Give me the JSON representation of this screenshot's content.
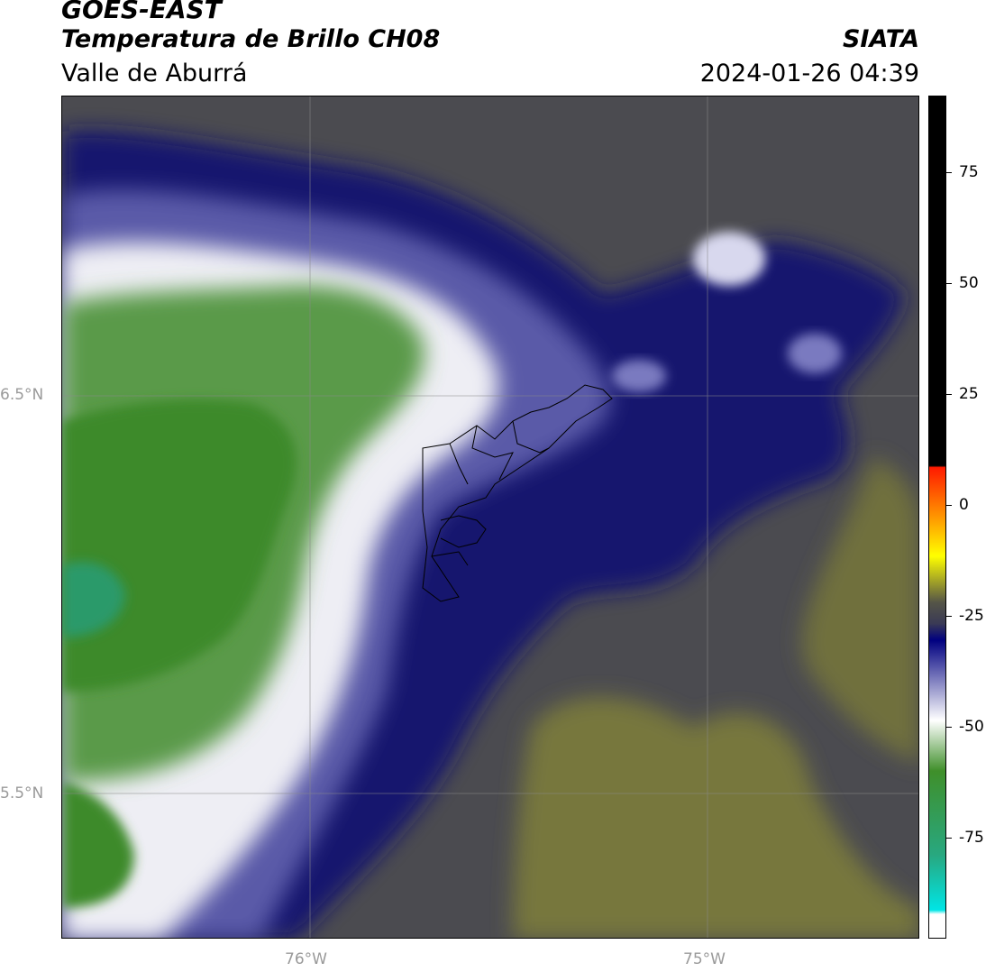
{
  "header": {
    "satellite": "GOES-EAST",
    "product": "Temperatura de Brillo CH08",
    "region": "Valle de Aburrá",
    "org": "SIATA",
    "timestamp": "2024-01-26 04:39"
  },
  "map": {
    "lat_labels": [
      "6.5°N",
      "5.5°N"
    ],
    "lon_labels": [
      "76°W",
      "75°W"
    ],
    "colors": {
      "green": "#3f8f2e",
      "white": "#ffffff",
      "navy": "#0b0b7a",
      "dark_gray": "#4a4a4e",
      "olive": "#7a7a3a",
      "border": "#000000"
    }
  },
  "colorbar": {
    "ticks": [
      "75",
      "50",
      "25",
      "0",
      "-25",
      "-50",
      "-75"
    ],
    "colors": [
      "#000000",
      "#ff0000",
      "#ff9900",
      "#ffff00",
      "#4a4a4a",
      "#000080",
      "#ffffff",
      "#3a8a2a",
      "#00e5e5",
      "#ffffff"
    ]
  }
}
